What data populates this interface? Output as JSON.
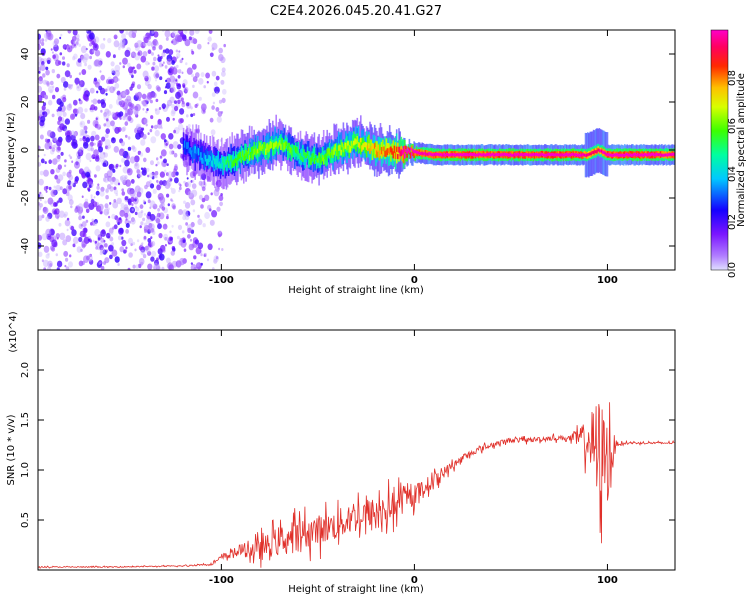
{
  "title": "C2E4.2026.045.20.41.G27",
  "chart_data": [
    {
      "type": "heatmap",
      "name": "spectrogram",
      "xlabel": "Height of straight line (km)",
      "ylabel": "Frequency (Hz)",
      "xlim": [
        -195,
        135
      ],
      "ylim": [
        -50,
        50
      ],
      "x_ticks": [
        -100,
        0,
        100
      ],
      "x_tick_labels": [
        "-100",
        "0",
        "100"
      ],
      "y_ticks": [
        -40,
        -20,
        0,
        20,
        40
      ],
      "y_tick_labels": [
        "-40",
        "-20",
        "0",
        "20",
        "40"
      ],
      "noise_region_x": [
        -195,
        -110
      ],
      "signal_start_x": -120,
      "ridge_x": [
        -120,
        -110,
        -100,
        -90,
        -80,
        -70,
        -60,
        -50,
        -40,
        -30,
        -20,
        -10,
        -5,
        0,
        10,
        20,
        40,
        60,
        85,
        90,
        95,
        100,
        110,
        120,
        135
      ],
      "ridge_freq": [
        2,
        -3,
        -6,
        -3,
        0,
        3,
        -2,
        -4,
        0,
        3,
        0,
        -1,
        -1,
        -1,
        -2,
        -2,
        -2,
        -2,
        -2,
        -2,
        0,
        -2,
        -2,
        -2,
        -2
      ],
      "ridge_amp": [
        0.3,
        0.35,
        0.45,
        0.55,
        0.6,
        0.6,
        0.5,
        0.55,
        0.6,
        0.65,
        0.75,
        0.8,
        1.0,
        0.95,
        0.95,
        0.97,
        0.97,
        0.97,
        0.97,
        0.9,
        0.9,
        0.97,
        0.97,
        0.97,
        0.95
      ]
    },
    {
      "type": "colorbar",
      "name": "amplitude-colorbar",
      "label": "Normalized spectral amplitude",
      "range": [
        0,
        1
      ],
      "ticks": [
        0.0,
        0.2,
        0.4,
        0.6,
        0.8
      ],
      "tick_labels": [
        "0.0",
        "0.2",
        "0.4",
        "0.6",
        "0.8"
      ]
    },
    {
      "type": "line",
      "name": "snr-trace",
      "xlabel": "Height of straight line (km)",
      "ylabel": "SNR (10 * v/v)",
      "y_scale_label": "(x10^4)",
      "xlim": [
        -195,
        135
      ],
      "ylim": [
        0,
        2.4
      ],
      "x_ticks": [
        -100,
        0,
        100
      ],
      "x_tick_labels": [
        "-100",
        "0",
        "100"
      ],
      "y_ticks": [
        0.5,
        1.0,
        1.5,
        2.0
      ],
      "y_tick_labels": [
        "0.5",
        "1.0",
        "1.5",
        "2.0"
      ],
      "color": "#e0302a",
      "series": [
        {
          "name": "SNR",
          "x": [
            -195,
            -160,
            -120,
            -105,
            -100,
            -95,
            -90,
            -80,
            -70,
            -60,
            -50,
            -40,
            -30,
            -20,
            -10,
            0,
            10,
            20,
            30,
            40,
            50,
            60,
            70,
            80,
            90,
            95,
            100,
            105,
            110,
            120,
            135
          ],
          "mean": [
            0.03,
            0.03,
            0.04,
            0.06,
            0.12,
            0.16,
            0.2,
            0.2,
            0.3,
            0.35,
            0.4,
            0.45,
            0.55,
            0.55,
            0.65,
            0.75,
            0.9,
            1.05,
            1.18,
            1.25,
            1.3,
            1.3,
            1.32,
            1.32,
            1.3,
            1.2,
            1.1,
            1.26,
            1.27,
            1.27,
            1.27
          ],
          "spread": [
            0.01,
            0.01,
            0.01,
            0.02,
            0.06,
            0.08,
            0.12,
            0.22,
            0.28,
            0.3,
            0.3,
            0.3,
            0.35,
            0.35,
            0.3,
            0.2,
            0.14,
            0.08,
            0.06,
            0.05,
            0.05,
            0.05,
            0.05,
            0.05,
            0.4,
            1.1,
            0.9,
            0.03,
            0.02,
            0.02,
            0.02
          ]
        }
      ]
    }
  ]
}
